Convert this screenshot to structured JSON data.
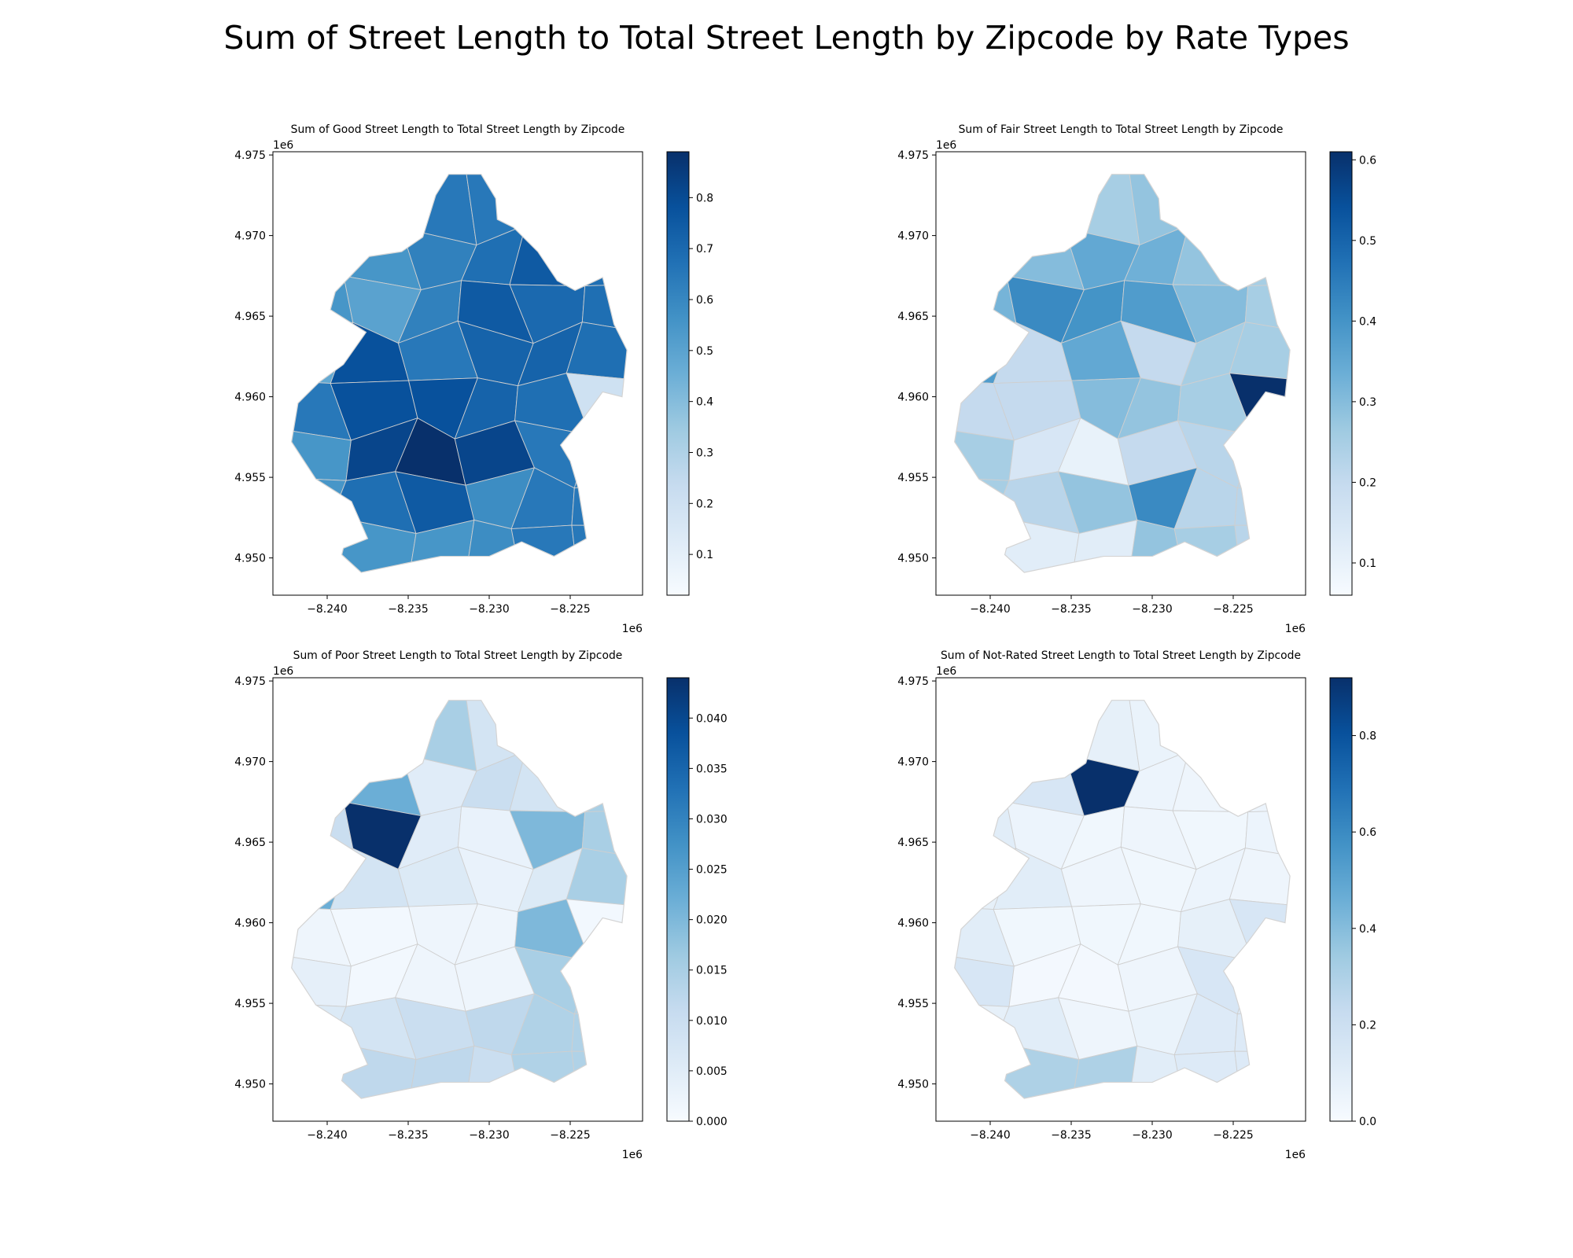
{
  "figure": {
    "title": "Sum of Street Length to Total Street Length by Zipcode by Rate Types"
  },
  "chart_data": [
    {
      "type": "heatmap",
      "kind": "choropleth",
      "title": "Sum of Good Street Length to Total Street Length by Zipcode",
      "cmap": "Blues",
      "color_range": [
        0.02,
        0.89
      ],
      "colorbar_ticks": [
        "0.1",
        "0.2",
        "0.3",
        "0.4",
        "0.5",
        "0.6",
        "0.7",
        "0.8"
      ],
      "xticks": [
        "−8.240",
        "−8.235",
        "−8.230",
        "−8.225"
      ],
      "yticks": [
        "4.950",
        "4.955",
        "4.960",
        "4.965",
        "4.970",
        "4.975"
      ],
      "x_offset_label": "1e6",
      "y_offset_label": "1e6",
      "xlim": [
        -8.24335,
        -8.22053
      ],
      "ylim": [
        4.9477,
        4.9752
      ],
      "values_rows_north_to_south": [
        [
          0.65,
          0.65,
          0.65,
          0.65,
          0.72,
          0.68
        ],
        [
          0.55,
          0.55,
          0.62,
          0.68,
          0.75,
          0.68
        ],
        [
          0.55,
          0.5,
          0.62,
          0.75,
          0.7,
          0.68
        ],
        [
          0.48,
          0.78,
          0.65,
          0.72,
          0.72,
          0.68
        ],
        [
          0.65,
          0.78,
          0.78,
          0.72,
          0.68,
          0.2
        ],
        [
          0.55,
          0.82,
          0.89,
          0.82,
          0.65,
          0.65
        ],
        [
          0.55,
          0.68,
          0.75,
          0.58,
          0.65,
          0.65
        ],
        [
          0.55,
          0.55,
          0.55,
          0.58,
          0.65,
          0.65
        ]
      ]
    },
    {
      "type": "heatmap",
      "kind": "choropleth",
      "title": "Sum of Fair Street Length to Total Street Length by Zipcode",
      "cmap": "Blues",
      "color_range": [
        0.06,
        0.61
      ],
      "colorbar_ticks": [
        "0.1",
        "0.2",
        "0.3",
        "0.4",
        "0.5",
        "0.6"
      ],
      "xticks": [
        "−8.240",
        "−8.235",
        "−8.230",
        "−8.225"
      ],
      "yticks": [
        "4.950",
        "4.955",
        "4.960",
        "4.965",
        "4.970",
        "4.975"
      ],
      "x_offset_label": "1e6",
      "y_offset_label": "1e6",
      "xlim": [
        -8.24335,
        -8.22053
      ],
      "ylim": [
        4.9477,
        4.9752
      ],
      "values_rows_north_to_south": [
        [
          0.25,
          0.25,
          0.25,
          0.28,
          0.28,
          0.28
        ],
        [
          0.3,
          0.3,
          0.35,
          0.33,
          0.28,
          0.25
        ],
        [
          0.32,
          0.42,
          0.4,
          0.38,
          0.3,
          0.25
        ],
        [
          0.38,
          0.2,
          0.35,
          0.2,
          0.25,
          0.25
        ],
        [
          0.2,
          0.2,
          0.3,
          0.28,
          0.25,
          0.61
        ],
        [
          0.25,
          0.15,
          0.1,
          0.2,
          0.22,
          0.22
        ],
        [
          0.25,
          0.22,
          0.28,
          0.42,
          0.22,
          0.22
        ],
        [
          0.12,
          0.12,
          0.12,
          0.28,
          0.25,
          0.22
        ]
      ]
    },
    {
      "type": "heatmap",
      "kind": "choropleth",
      "title": "Sum of Poor Street Length to Total Street Length by Zipcode",
      "cmap": "Blues",
      "color_range": [
        0.0,
        0.044
      ],
      "colorbar_ticks": [
        "0.000",
        "0.005",
        "0.010",
        "0.015",
        "0.020",
        "0.025",
        "0.030",
        "0.035",
        "0.040"
      ],
      "xticks": [
        "−8.240",
        "−8.235",
        "−8.230",
        "−8.225"
      ],
      "yticks": [
        "4.950",
        "4.955",
        "4.960",
        "4.965",
        "4.970",
        "4.975"
      ],
      "x_offset_label": "1e6",
      "y_offset_label": "1e6",
      "xlim": [
        -8.24335,
        -8.22053
      ],
      "ylim": [
        4.9477,
        4.9752
      ],
      "values_rows_north_to_south": [
        [
          0.015,
          0.015,
          0.015,
          0.008,
          0.008,
          0.008
        ],
        [
          0.02,
          0.022,
          0.005,
          0.01,
          0.008,
          0.015
        ],
        [
          0.01,
          0.044,
          0.005,
          0.003,
          0.02,
          0.015
        ],
        [
          0.022,
          0.008,
          0.006,
          0.003,
          0.006,
          0.015
        ],
        [
          0.002,
          0.001,
          0.002,
          0.002,
          0.02,
          0.001
        ],
        [
          0.004,
          0.001,
          0.002,
          0.002,
          0.015,
          0.014
        ],
        [
          0.006,
          0.008,
          0.01,
          0.012,
          0.014,
          0.014
        ],
        [
          0.012,
          0.012,
          0.012,
          0.01,
          0.014,
          0.014
        ]
      ]
    },
    {
      "type": "heatmap",
      "kind": "choropleth",
      "title": "Sum of Not-Rated Street Length to Total Street Length by Zipcode",
      "cmap": "Blues",
      "color_range": [
        0.0,
        0.92
      ],
      "colorbar_ticks": [
        "0.0",
        "0.2",
        "0.4",
        "0.6",
        "0.8"
      ],
      "xticks": [
        "−8.240",
        "−8.235",
        "−8.230",
        "−8.225"
      ],
      "yticks": [
        "4.950",
        "4.955",
        "4.960",
        "4.965",
        "4.970",
        "4.975"
      ],
      "x_offset_label": "1e6",
      "y_offset_label": "1e6",
      "xlim": [
        -8.24335,
        -8.22053
      ],
      "ylim": [
        4.9477,
        4.9752
      ],
      "values_rows_north_to_south": [
        [
          0.08,
          0.08,
          0.08,
          0.06,
          0.06,
          0.06
        ],
        [
          0.12,
          0.15,
          0.92,
          0.05,
          0.04,
          0.05
        ],
        [
          0.1,
          0.05,
          0.03,
          0.04,
          0.03,
          0.05
        ],
        [
          0.08,
          0.1,
          0.04,
          0.03,
          0.05,
          0.04
        ],
        [
          0.1,
          0.03,
          0.03,
          0.03,
          0.08,
          0.15
        ],
        [
          0.15,
          0.02,
          0.02,
          0.04,
          0.15,
          0.12
        ],
        [
          0.08,
          0.1,
          0.04,
          0.06,
          0.12,
          0.12
        ],
        [
          0.3,
          0.3,
          0.3,
          0.1,
          0.12,
          0.12
        ]
      ]
    }
  ]
}
